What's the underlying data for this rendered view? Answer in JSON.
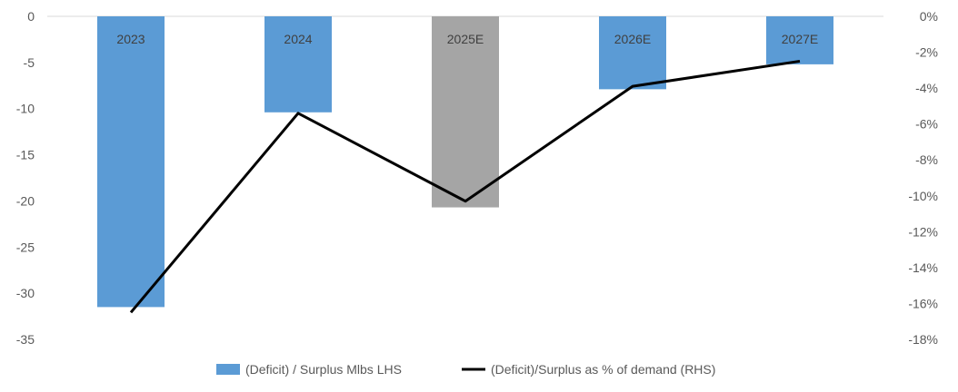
{
  "chart_data": {
    "type": "bar",
    "categories": [
      "2023",
      "2024",
      "2025E",
      "2026E",
      "2027E"
    ],
    "series": [
      {
        "name": "(Deficit) / Surplus Mlbs LHS",
        "type": "bar",
        "axis": "left",
        "values": [
          -31.5,
          -10.4,
          -20.7,
          -7.9,
          -5.2
        ],
        "colors": [
          "#5b9bd5",
          "#5b9bd5",
          "#a5a5a5",
          "#5b9bd5",
          "#5b9bd5"
        ]
      },
      {
        "name": "(Deficit)/Surplus as % of demand (RHS)",
        "type": "line",
        "axis": "right",
        "values": [
          -16.5,
          -5.4,
          -10.3,
          -3.9,
          -2.5
        ],
        "color": "#000000"
      }
    ],
    "ylim_left": [
      -35,
      0
    ],
    "yticks_left": [
      "0",
      "-5",
      "-10",
      "-15",
      "-20",
      "-25",
      "-30",
      "-35"
    ],
    "ylim_right": [
      -18,
      0
    ],
    "yticks_right": [
      "0%",
      "-2%",
      "-4%",
      "-6%",
      "-8%",
      "-10%",
      "-12%",
      "-14%",
      "-16%",
      "-18%"
    ],
    "grid": false,
    "legend": "bottom"
  }
}
